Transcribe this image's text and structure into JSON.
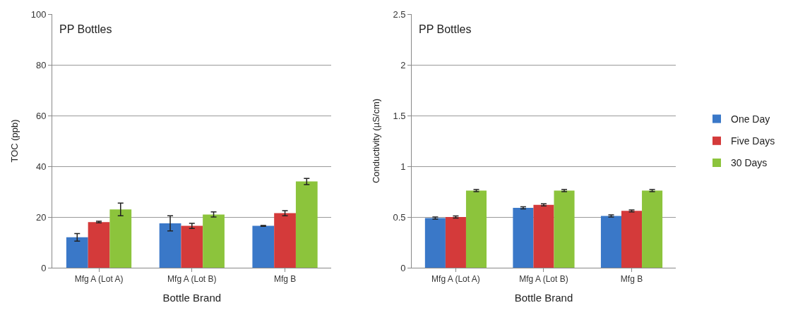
{
  "chart_data": [
    {
      "type": "bar",
      "xlabel": "Bottle Brand",
      "ylabel": "TOC (ppb)",
      "annotations": [
        "PP Bottles"
      ],
      "categories": [
        "Mfg A (Lot A)",
        "Mfg A (Lot B)",
        "Mfg B"
      ],
      "ylim": [
        0,
        100
      ],
      "yticks": [
        0,
        20,
        40,
        60,
        80,
        100
      ],
      "grid": "y",
      "series": [
        {
          "color": "#3a78c8",
          "values": [
            12,
            17.5,
            16.5
          ],
          "errors": [
            1.5,
            3,
            0.2
          ]
        },
        {
          "color": "#d43a3a",
          "values": [
            18,
            16.5,
            21.5
          ],
          "errors": [
            0.3,
            1,
            1
          ]
        },
        {
          "color": "#8cc43c",
          "values": [
            23,
            21,
            34
          ],
          "errors": [
            2.5,
            1,
            1.2
          ]
        }
      ]
    },
    {
      "type": "bar",
      "xlabel": "Bottle Brand",
      "ylabel": "Conductivity (µS/cm)",
      "annotations": [
        "PP Bottles"
      ],
      "categories": [
        "Mfg A (Lot A)",
        "Mfg A (Lot B)",
        "Mfg B"
      ],
      "ylim": [
        0,
        2.5
      ],
      "yticks": [
        0,
        0.5,
        1,
        1.5,
        2,
        2.5
      ],
      "grid": "y",
      "legend": "right",
      "series": [
        {
          "name": "One Day",
          "color": "#3a78c8",
          "values": [
            0.49,
            0.59,
            0.51
          ],
          "errors": [
            0.01,
            0.01,
            0.01
          ]
        },
        {
          "name": "Five Days",
          "color": "#d43a3a",
          "values": [
            0.5,
            0.62,
            0.56
          ],
          "errors": [
            0.01,
            0.01,
            0.01
          ]
        },
        {
          "name": "30 Days",
          "color": "#8cc43c",
          "values": [
            0.76,
            0.76,
            0.76
          ],
          "errors": [
            0.01,
            0.01,
            0.01
          ]
        }
      ]
    }
  ]
}
